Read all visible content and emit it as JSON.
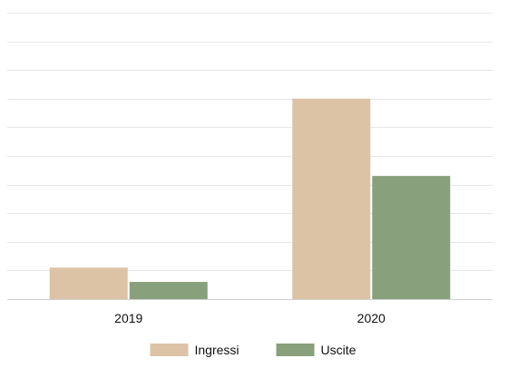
{
  "chart_data": {
    "type": "bar",
    "categories": [
      "2019",
      "2020"
    ],
    "series": [
      {
        "name": "Ingressi",
        "values": [
          1.1,
          7
        ]
      },
      {
        "name": "Uscite",
        "values": [
          0.6,
          4.3
        ]
      }
    ],
    "title": "",
    "xlabel": "",
    "ylabel": "",
    "ylim": [
      0,
      10
    ],
    "grid": true,
    "legend": "bottom-center",
    "colors": {
      "Ingressi": "#dcc3a6",
      "Uscite": "#88a07b",
      "grid": "#e6e6e6",
      "axis": "#cfcfcf"
    }
  }
}
